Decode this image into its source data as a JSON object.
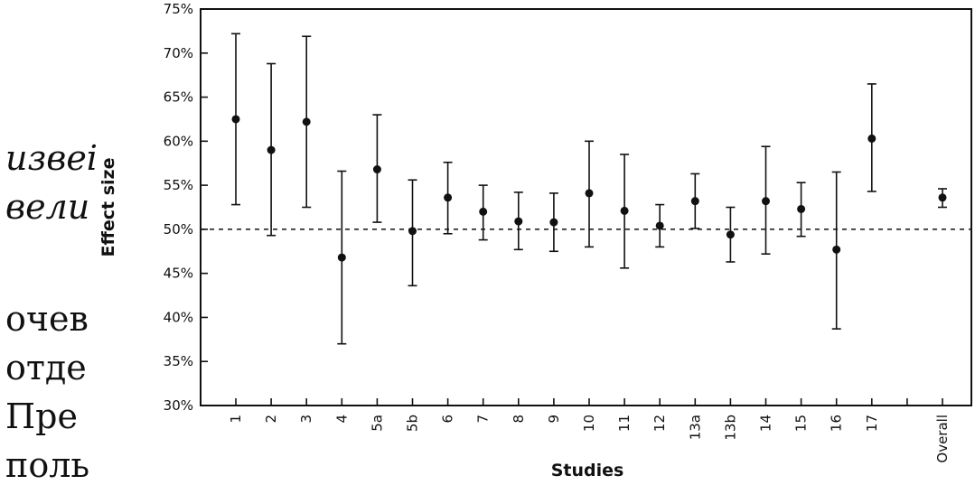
{
  "background_text": [
    {
      "text": "извеі",
      "italic": true
    },
    {
      "text": "вели",
      "italic": true
    },
    {
      "text": "очев",
      "italic": false
    },
    {
      "text": "отде",
      "italic": false
    },
    {
      "text": "Пре",
      "italic": false
    },
    {
      "text": "поль",
      "italic": false
    }
  ],
  "chart_data": {
    "type": "scatter",
    "title": "",
    "xlabel": "Studies",
    "ylabel": "Effect size",
    "ylim": [
      30,
      75
    ],
    "y_ticks": [
      "30%",
      "35%",
      "40%",
      "45%",
      "50%",
      "55%",
      "60%",
      "65%",
      "70%",
      "75%"
    ],
    "y_tick_values": [
      30,
      35,
      40,
      45,
      50,
      55,
      60,
      65,
      70,
      75
    ],
    "reference_line": 50,
    "grid": false,
    "legend": "none",
    "categories": [
      "1",
      "2",
      "3",
      "4",
      "5a",
      "5b",
      "6",
      "7",
      "8",
      "9",
      "10",
      "11",
      "12",
      "13a",
      "13b",
      "14",
      "15",
      "16",
      "17",
      "",
      "Overall"
    ],
    "values": [
      62.5,
      59,
      62.2,
      46.8,
      56.8,
      49.8,
      53.6,
      52,
      50.9,
      50.8,
      54.1,
      52.1,
      50.4,
      53.2,
      49.4,
      53.2,
      52.3,
      47.7,
      60.3,
      null,
      53.6
    ],
    "lower": [
      52.8,
      49.3,
      52.5,
      37,
      50.8,
      43.6,
      49.5,
      48.8,
      47.7,
      47.5,
      48,
      45.6,
      48,
      50.1,
      46.3,
      47.2,
      49.2,
      38.7,
      54.3,
      null,
      52.5
    ],
    "upper": [
      72.2,
      68.8,
      71.9,
      56.6,
      63,
      55.6,
      57.6,
      55,
      54.2,
      54.1,
      60,
      58.5,
      52.8,
      56.3,
      52.5,
      59.4,
      55.3,
      56.5,
      66.5,
      null,
      54.6
    ]
  }
}
